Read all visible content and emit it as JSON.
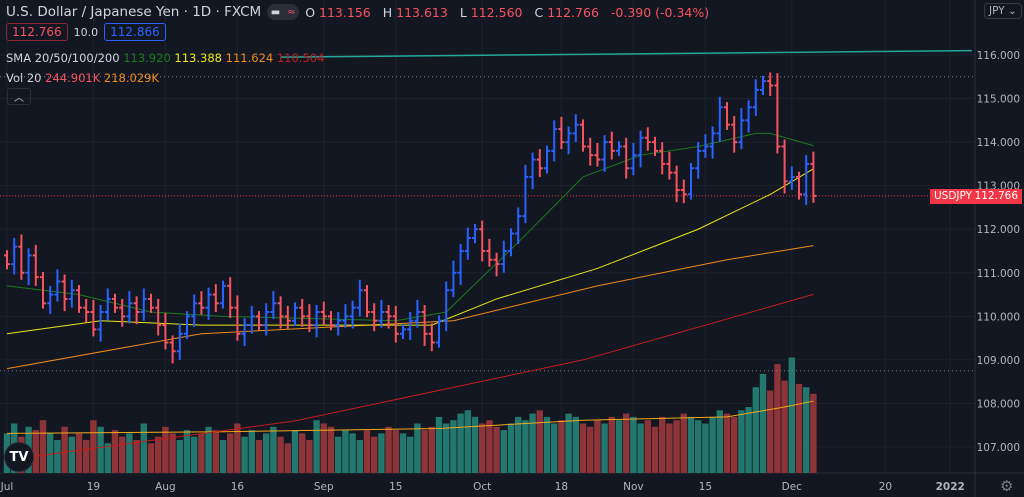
{
  "header": {
    "title": "U.S. Dollar / Japanese Yen · 1D · FXCM",
    "ohlc": {
      "o_label": "O",
      "o": "113.156",
      "h_label": "H",
      "h": "113.613",
      "l_label": "L",
      "l": "112.560",
      "c_label": "C",
      "c": "112.766",
      "change": "-0.390 (-0.34%)"
    },
    "sell_price": "112.766",
    "spread": "10.0",
    "buy_price": "112.866"
  },
  "indicators": {
    "sma_label": "SMA 20/50/100/200",
    "sma_values": [
      "113.920",
      "113.388",
      "111.624",
      "110.504"
    ],
    "vol_label": "Vol 20",
    "vol_values": [
      "244.901K",
      "218.029K"
    ]
  },
  "currency_button": "JPY",
  "price_label": {
    "symbol": "USDJPY",
    "value": "112.766"
  },
  "colors": {
    "up": "#2962ff",
    "down": "#f7525f",
    "vol_up": "#22786e",
    "vol_down": "#8c3438",
    "sma20": "#1b7a1b",
    "sma50": "#e8e815",
    "sma100": "#f08c1a",
    "sma200": "#c41c1c",
    "trendline": "#26a69a"
  },
  "chart_data": {
    "type": "ohlc",
    "y_ticks": [
      "116.000",
      "115.000",
      "114.000",
      "113.000",
      "112.000",
      "111.000",
      "110.000",
      "109.000",
      "108.000",
      "107.000"
    ],
    "x_ticks": [
      {
        "label": "Jul",
        "bar": 0
      },
      {
        "label": "19",
        "bar": 12
      },
      {
        "label": "Aug",
        "bar": 22
      },
      {
        "label": "16",
        "bar": 32
      },
      {
        "label": "Sep",
        "bar": 44
      },
      {
        "label": "15",
        "bar": 54
      },
      {
        "label": "Oct",
        "bar": 66
      },
      {
        "label": "18",
        "bar": 77
      },
      {
        "label": "Nov",
        "bar": 87
      },
      {
        "label": "15",
        "bar": 97
      },
      {
        "label": "Dec",
        "bar": 109
      },
      {
        "label": "20",
        "bar": 122
      },
      {
        "label": "2022",
        "bar": 131
      }
    ],
    "closes": [
      111.2,
      111.6,
      111.0,
      111.4,
      110.9,
      110.3,
      110.5,
      110.8,
      110.4,
      110.6,
      110.2,
      110.1,
      109.7,
      110.1,
      110.4,
      110.2,
      110.0,
      110.3,
      110.1,
      110.4,
      110.2,
      109.8,
      109.4,
      109.2,
      109.6,
      110.0,
      110.3,
      110.2,
      110.5,
      110.3,
      110.7,
      110.2,
      109.6,
      109.8,
      110.0,
      109.8,
      110.1,
      110.3,
      110.0,
      109.9,
      110.2,
      110.0,
      109.8,
      110.1,
      110.0,
      109.8,
      109.9,
      110.0,
      110.2,
      110.6,
      110.1,
      109.9,
      110.1,
      110.0,
      109.6,
      109.7,
      109.9,
      110.1,
      109.6,
      109.4,
      109.9,
      110.6,
      111.0,
      111.5,
      111.8,
      112.0,
      111.5,
      111.3,
      111.2,
      111.5,
      111.9,
      112.3,
      113.2,
      113.6,
      113.4,
      113.8,
      114.3,
      114.0,
      114.2,
      114.4,
      113.9,
      113.7,
      113.6,
      114.0,
      113.8,
      113.9,
      113.4,
      113.7,
      114.1,
      114.0,
      113.8,
      113.5,
      113.3,
      112.9,
      112.8,
      113.4,
      113.8,
      113.9,
      114.2,
      114.8,
      114.4,
      114.0,
      114.5,
      114.8,
      115.2,
      115.4,
      115.3,
      113.9,
      113.1,
      113.2,
      112.8,
      113.5,
      112.766
    ],
    "volumes_k": [
      120,
      150,
      110,
      140,
      130,
      160,
      120,
      100,
      140,
      110,
      120,
      100,
      160,
      140,
      90,
      130,
      110,
      120,
      100,
      150,
      90,
      110,
      140,
      120,
      100,
      130,
      110,
      120,
      140,
      130,
      100,
      120,
      150,
      110,
      130,
      100,
      120,
      140,
      110,
      90,
      130,
      120,
      100,
      160,
      150,
      140,
      110,
      130,
      120,
      100,
      130,
      110,
      120,
      140,
      130,
      120,
      110,
      150,
      130,
      140,
      170,
      150,
      160,
      180,
      190,
      170,
      150,
      160,
      140,
      130,
      150,
      170,
      160,
      180,
      190,
      170,
      150,
      160,
      180,
      170,
      150,
      140,
      160,
      150,
      170,
      160,
      180,
      170,
      150,
      160,
      140,
      170,
      150,
      160,
      180,
      170,
      160,
      150,
      170,
      190,
      180,
      170,
      190,
      200,
      260,
      300,
      250,
      330,
      280,
      350,
      270,
      260,
      240
    ],
    "sma20": [
      [
        0,
        110.7
      ],
      [
        10,
        110.5
      ],
      [
        20,
        110.1
      ],
      [
        30,
        110.0
      ],
      [
        54,
        109.9
      ],
      [
        61,
        110.1
      ],
      [
        71,
        111.7
      ],
      [
        80,
        113.2
      ],
      [
        88,
        113.7
      ],
      [
        96,
        113.9
      ],
      [
        104,
        114.2
      ],
      [
        106,
        114.2
      ],
      [
        112,
        113.92
      ]
    ],
    "sma50": [
      [
        0,
        109.6
      ],
      [
        13,
        109.9
      ],
      [
        27,
        109.8
      ],
      [
        59,
        109.8
      ],
      [
        68,
        110.4
      ],
      [
        82,
        111.1
      ],
      [
        96,
        112.0
      ],
      [
        106,
        112.8
      ],
      [
        112,
        113.388
      ]
    ],
    "sma100": [
      [
        0,
        108.8
      ],
      [
        27,
        109.6
      ],
      [
        62,
        109.9
      ],
      [
        82,
        110.7
      ],
      [
        100,
        111.3
      ],
      [
        112,
        111.624
      ]
    ],
    "sma200": [
      [
        0,
        106.7
      ],
      [
        40,
        107.6
      ],
      [
        80,
        109.0
      ],
      [
        112,
        110.504
      ]
    ],
    "vol_ma_k": [
      [
        0,
        120
      ],
      [
        30,
        125
      ],
      [
        60,
        135
      ],
      [
        80,
        160
      ],
      [
        100,
        170
      ],
      [
        108,
        200
      ],
      [
        112,
        218
      ]
    ],
    "trendline": [
      [
        38,
        115.95
      ],
      [
        134,
        116.1
      ]
    ],
    "h_lines": [
      115.5,
      108.75
    ]
  }
}
